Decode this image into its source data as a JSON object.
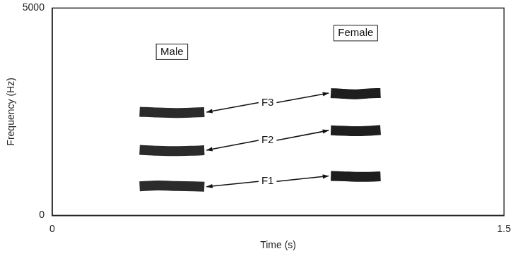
{
  "chart_data": {
    "type": "line",
    "x_label": "Time (s)",
    "y_label": "Frequency (Hz)",
    "xlim": [
      0,
      1.5
    ],
    "xticks": [
      0,
      1.5
    ],
    "ylim": [
      0,
      5000
    ],
    "yticks": [
      0,
      5000
    ],
    "grid": false,
    "series": [
      {
        "name": "F1",
        "speaker": "Male",
        "color": "#2b2b2b",
        "x": [
          0.29,
          0.35,
          0.41,
          0.47,
          0.505
        ],
        "values": [
          700,
          720,
          710,
          700,
          690
        ]
      },
      {
        "name": "F2",
        "speaker": "Male",
        "color": "#2b2b2b",
        "x": [
          0.29,
          0.35,
          0.41,
          0.47,
          0.505
        ],
        "values": [
          1580,
          1560,
          1550,
          1560,
          1570
        ]
      },
      {
        "name": "F3",
        "speaker": "Male",
        "color": "#2b2b2b",
        "x": [
          0.29,
          0.35,
          0.41,
          0.47,
          0.505
        ],
        "values": [
          2500,
          2480,
          2470,
          2480,
          2490
        ]
      },
      {
        "name": "F1",
        "speaker": "Female",
        "color": "#1e1e1e",
        "x": [
          0.925,
          0.97,
          1.01,
          1.05,
          1.09
        ],
        "values": [
          950,
          940,
          930,
          930,
          940
        ]
      },
      {
        "name": "F2",
        "speaker": "Female",
        "color": "#1e1e1e",
        "x": [
          0.925,
          0.97,
          1.01,
          1.05,
          1.09
        ],
        "values": [
          2050,
          2040,
          2030,
          2040,
          2060
        ]
      },
      {
        "name": "F3",
        "speaker": "Female",
        "color": "#1e1e1e",
        "x": [
          0.925,
          0.97,
          1.01,
          1.05,
          1.09
        ],
        "values": [
          2950,
          2930,
          2920,
          2940,
          2950
        ]
      }
    ]
  }
}
